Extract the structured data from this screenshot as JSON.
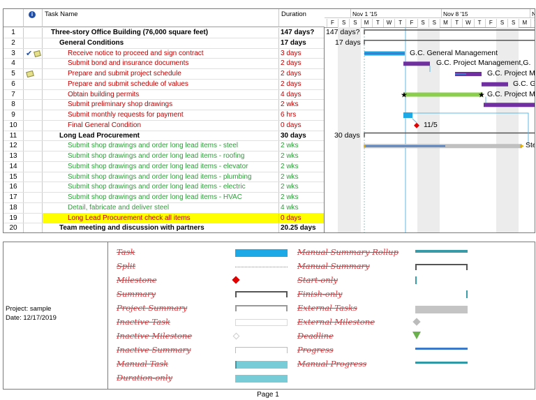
{
  "table": {
    "headers": {
      "id": "",
      "info_icon": "info-icon",
      "name": "Task Name",
      "duration": "Duration"
    },
    "rows": [
      {
        "id": "1",
        "name": "Three-story Office Building (76,000 square feet)",
        "duration": "147 days?",
        "style": "bold",
        "indent": 12
      },
      {
        "id": "2",
        "name": "General Conditions",
        "duration": "17 days",
        "style": "bold",
        "indent": 24
      },
      {
        "id": "3",
        "name": "Receive notice to proceed and sign contract",
        "duration": "3 days",
        "style": "red",
        "indent": 36,
        "indicator": "check-note"
      },
      {
        "id": "4",
        "name": "Submit bond and insurance documents",
        "duration": "2 days",
        "style": "red",
        "indent": 36
      },
      {
        "id": "5",
        "name": "Prepare and submit project schedule",
        "duration": "2 days",
        "style": "red",
        "indent": 36,
        "indicator": "note"
      },
      {
        "id": "6",
        "name": "Prepare and submit schedule of values",
        "duration": "2 days",
        "style": "red",
        "indent": 36
      },
      {
        "id": "7",
        "name": "Obtain building permits",
        "duration": "4 days",
        "style": "red",
        "indent": 36
      },
      {
        "id": "8",
        "name": "Submit preliminary shop drawings",
        "duration": "2 wks",
        "style": "red",
        "indent": 36
      },
      {
        "id": "9",
        "name": "Submit monthly requests for payment",
        "duration": "6 hrs",
        "style": "red",
        "indent": 36
      },
      {
        "id": "10",
        "name": "Final General Condition",
        "duration": "0 days",
        "style": "red",
        "indent": 36
      },
      {
        "id": "11",
        "name": "Long Lead Procurement",
        "duration": "30 days",
        "style": "bold",
        "indent": 24
      },
      {
        "id": "12",
        "name": "Submit shop drawings and order long lead items - steel",
        "duration": "2 wks",
        "style": "green",
        "indent": 36
      },
      {
        "id": "13",
        "name": "Submit shop drawings and order long lead items - roofing",
        "duration": "2 wks",
        "style": "green",
        "indent": 36
      },
      {
        "id": "14",
        "name": "Submit shop drawings and order long lead items - elevator",
        "duration": "2 wks",
        "style": "green",
        "indent": 36
      },
      {
        "id": "15",
        "name": "Submit shop drawings and order long lead items - plumbing",
        "duration": "2 wks",
        "style": "green",
        "indent": 36
      },
      {
        "id": "16",
        "name": "Submit shop drawings and order long lead items - electric",
        "duration": "2 wks",
        "style": "green",
        "indent": 36
      },
      {
        "id": "17",
        "name": "Submit shop drawings and order long lead items - HVAC",
        "duration": "2 wks",
        "style": "green",
        "indent": 36
      },
      {
        "id": "18",
        "name": "Detail, fabricate and deliver steel",
        "duration": "4 wks",
        "style": "green",
        "indent": 36
      },
      {
        "id": "19",
        "name": "Long Lead Procurement check all items",
        "duration": "0 days",
        "style": "highlight",
        "indent": 36
      },
      {
        "id": "20",
        "name": "Team meeting and discussion with partners",
        "duration": "20.25 days",
        "style": "bold",
        "indent": 24
      }
    ]
  },
  "timescale": {
    "weeks": [
      "Nov 1 '15",
      "Nov 8 '15",
      "N"
    ],
    "days": [
      "F",
      "S",
      "S",
      "M",
      "T",
      "W",
      "T",
      "F",
      "S",
      "S",
      "M",
      "T",
      "W",
      "T",
      "F",
      "S",
      "S",
      "M",
      "T"
    ]
  },
  "gantt_labels": {
    "summary1": "147 days?",
    "summary2": "17 days",
    "row3": "G.C. General Management",
    "row4": "G.C. Project Management,G.",
    "row5": "G.C. Project M",
    "row6": "G.C. Ge",
    "row7": "G.C. Project M",
    "row10": "11/5",
    "summary11": "30 days",
    "row12": "Ste"
  },
  "legend": {
    "project_label": "Project: sample",
    "date_label": "Date: 12/17/2019",
    "left_items": [
      "Task",
      "Split",
      "Milestone",
      "Summary",
      "Project Summary",
      "Inactive Task",
      "Inactive Milestone",
      "Inactive Summary",
      "Manual Task",
      "Duration-only"
    ],
    "right_items": [
      "Manual Summary Rollup",
      "Manual Summary",
      "Start-only",
      "Finish-only",
      "External Tasks",
      "External Milestone",
      "Deadline",
      "Progress",
      "Manual Progress"
    ]
  },
  "footer": {
    "page": "Page 1"
  },
  "colors": {
    "task": "#1ca9e6",
    "critical": "#7030a0",
    "green_bar": "#8ccf4d",
    "milestone": "#e00000",
    "highlight": "#ffff00",
    "legend_text": "#e0353a"
  }
}
